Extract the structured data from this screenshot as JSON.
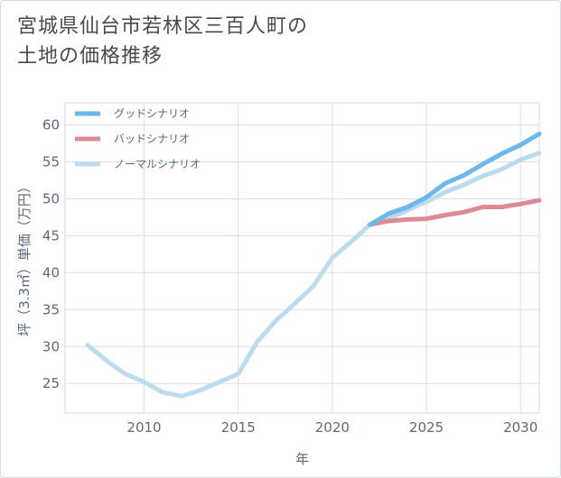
{
  "title": {
    "line1": "宮城県仙台市若林区三百人町の",
    "line2": "土地の価格推移"
  },
  "chart_data": {
    "type": "line",
    "xlabel": "年",
    "ylabel": "坪（3.3㎡）単価（万円）",
    "xlim": [
      2005.8,
      2031
    ],
    "ylim": [
      21,
      63
    ],
    "xticks": [
      2010,
      2015,
      2020,
      2025,
      2030
    ],
    "yticks": [
      25,
      30,
      35,
      40,
      45,
      50,
      55,
      60
    ],
    "grid": true,
    "legend_position": "top-left",
    "series": [
      {
        "name": "グッドシナリオ",
        "color": "#6cb8ea",
        "x": [
          2022,
          2023,
          2024,
          2025,
          2026,
          2027,
          2028,
          2029,
          2030,
          2031
        ],
        "y": [
          46.5,
          48.0,
          48.9,
          50.2,
          52.1,
          53.2,
          54.7,
          56.1,
          57.3,
          58.8
        ]
      },
      {
        "name": "バッドシナリオ",
        "color": "#dc8a93",
        "x": [
          2022,
          2023,
          2024,
          2025,
          2026,
          2027,
          2028,
          2029,
          2030,
          2031
        ],
        "y": [
          46.5,
          47.0,
          47.2,
          47.3,
          47.8,
          48.2,
          48.9,
          48.9,
          49.3,
          49.8
        ]
      },
      {
        "name": "ノーマルシナリオ",
        "color": "#bcdcee",
        "x": [
          2007,
          2008,
          2009,
          2010,
          2011,
          2012,
          2013,
          2014,
          2015,
          2016,
          2017,
          2018,
          2019,
          2020,
          2021,
          2022,
          2023,
          2024,
          2025,
          2026,
          2027,
          2028,
          2029,
          2030,
          2031
        ],
        "y": [
          30.2,
          28.1,
          26.3,
          25.2,
          23.8,
          23.3,
          24.1,
          25.2,
          26.3,
          30.6,
          33.5,
          35.8,
          38.2,
          42.0,
          44.2,
          46.5,
          47.3,
          48.5,
          49.6,
          50.9,
          51.9,
          53.1,
          54.0,
          55.3,
          56.2
        ]
      }
    ]
  }
}
